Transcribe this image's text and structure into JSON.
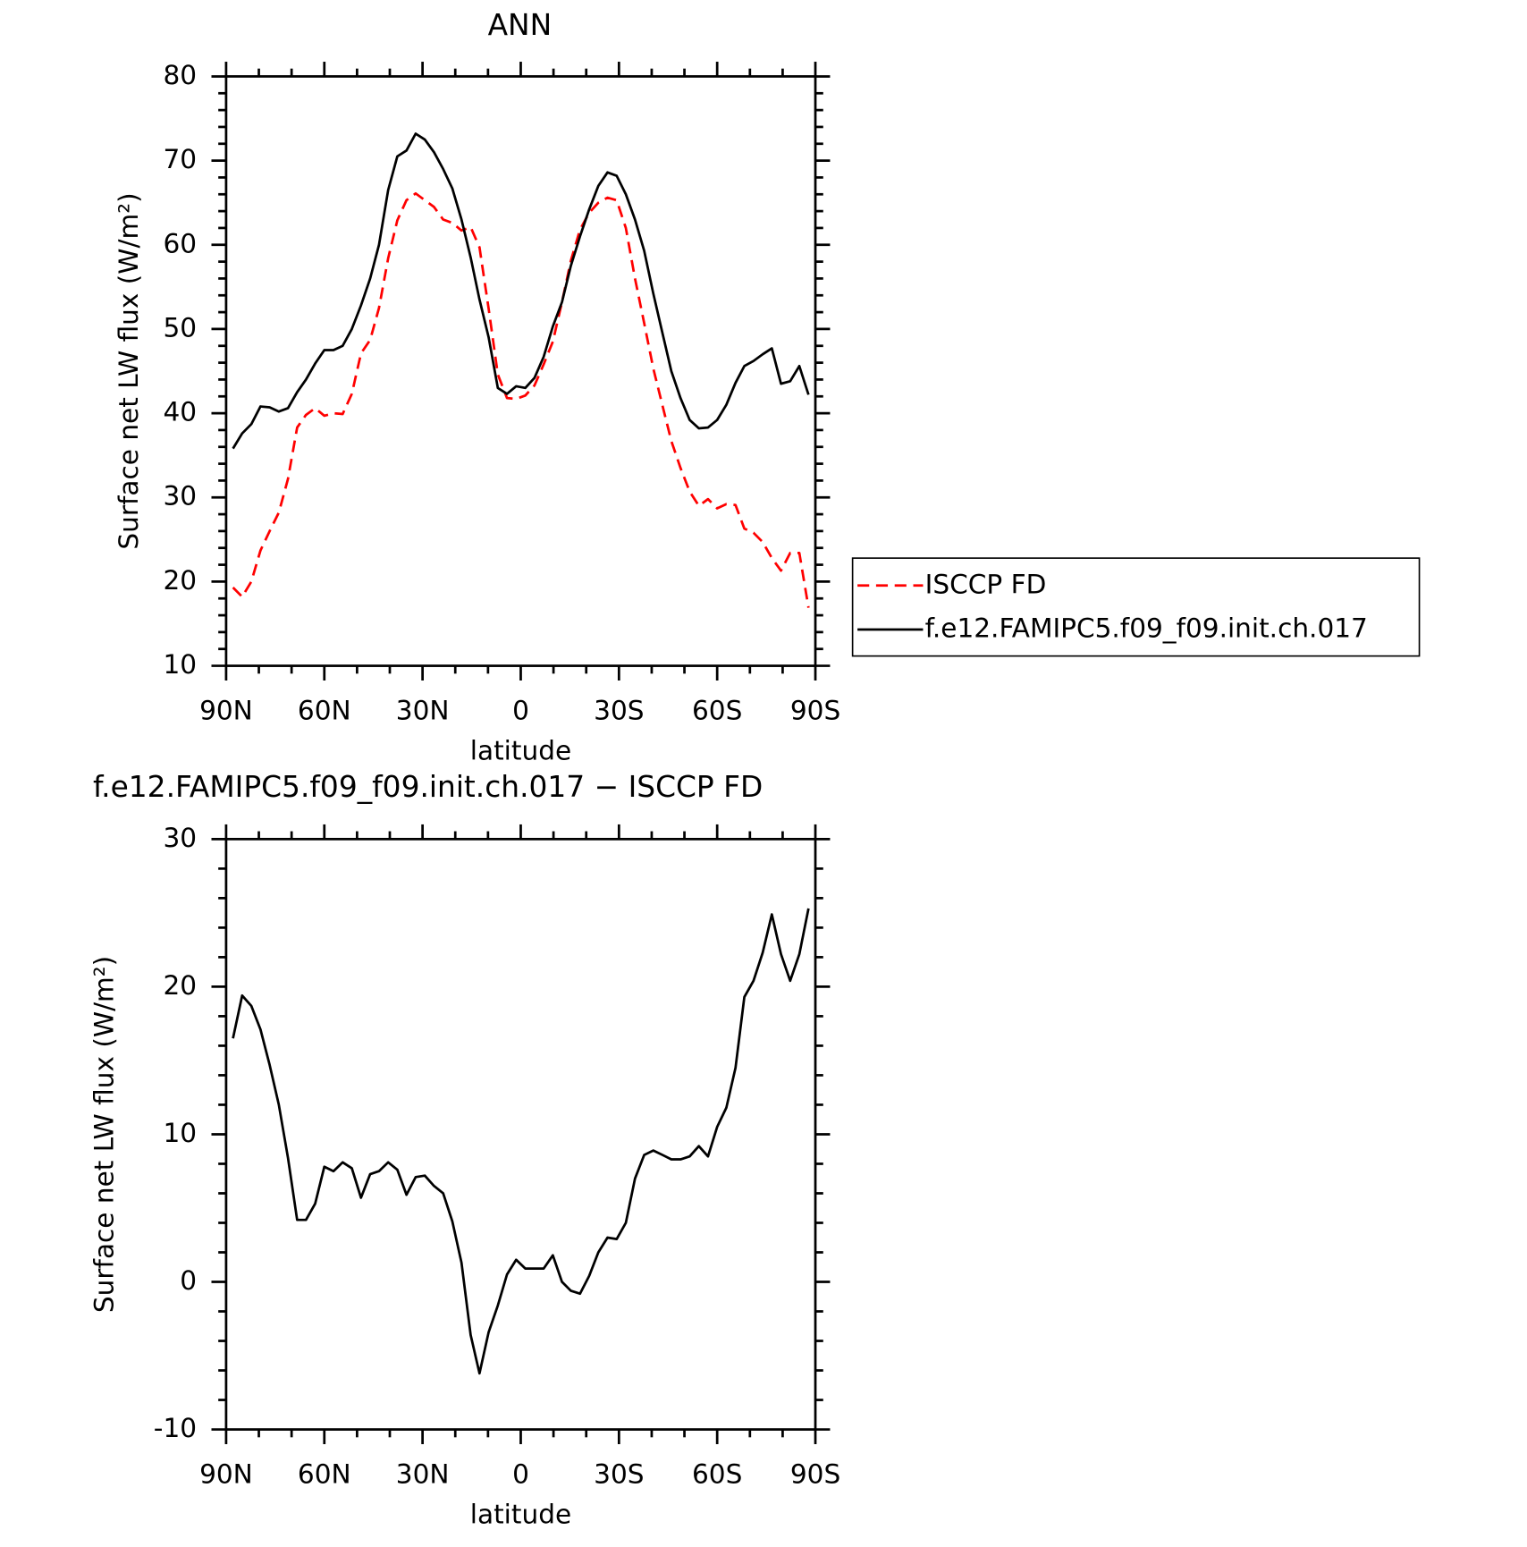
{
  "chart_data": [
    {
      "type": "line",
      "title": "ANN",
      "xlabel": "latitude",
      "ylabel": "Surface net LW flux (W/m²)",
      "x": [
        87.9,
        85.1,
        82.3,
        79.5,
        76.7,
        73.9,
        71.1,
        68.3,
        65.6,
        62.8,
        60.0,
        57.2,
        54.4,
        51.6,
        48.8,
        46.0,
        43.3,
        40.5,
        37.7,
        34.9,
        32.1,
        29.3,
        26.5,
        23.7,
        20.9,
        18.1,
        15.3,
        12.6,
        9.8,
        7.0,
        4.2,
        1.4,
        -1.4,
        -4.2,
        -7.0,
        -9.8,
        -12.6,
        -15.3,
        -18.1,
        -20.9,
        -23.7,
        -26.5,
        -29.3,
        -32.1,
        -34.9,
        -37.7,
        -40.5,
        -43.3,
        -46.0,
        -48.8,
        -51.6,
        -54.4,
        -57.2,
        -60.0,
        -62.8,
        -65.6,
        -68.3,
        -71.1,
        -73.9,
        -76.7,
        -79.5,
        -82.3,
        -85.1,
        -87.9
      ],
      "series": [
        {
          "name": "ISCCP FD",
          "color": "#ff0000",
          "linestyle": "dashed",
          "values": [
            19.3,
            18.2,
            20.0,
            23.7,
            26.0,
            28.2,
            32.2,
            38.3,
            39.8,
            40.6,
            39.7,
            40.0,
            39.9,
            42.3,
            47.1,
            48.7,
            52.5,
            58.4,
            62.9,
            65.3,
            66.1,
            65.3,
            64.5,
            63.0,
            62.6,
            61.7,
            62.1,
            59.7,
            52.4,
            44.6,
            41.8,
            41.7,
            42.1,
            43.3,
            45.8,
            48.5,
            53.2,
            58.1,
            61.8,
            63.8,
            65.0,
            65.6,
            65.3,
            62.0,
            56.0,
            50.7,
            45.3,
            40.9,
            36.7,
            33.5,
            30.7,
            29.0,
            29.8,
            28.7,
            29.2,
            29.1,
            26.3,
            25.8,
            24.7,
            22.8,
            21.3,
            23.4,
            23.4,
            16.9
          ]
        },
        {
          "name": "f.e12.FAMIPC5.f09_f09.init.ch.017",
          "color": "#000000",
          "linestyle": "solid",
          "values": [
            35.8,
            37.6,
            38.7,
            40.8,
            40.7,
            40.2,
            40.6,
            42.5,
            44.0,
            45.9,
            47.5,
            47.5,
            48.0,
            50.0,
            52.8,
            56.0,
            60.0,
            66.5,
            70.5,
            71.2,
            73.2,
            72.5,
            71.0,
            69.0,
            66.7,
            63.0,
            58.5,
            53.5,
            49.0,
            43.0,
            42.3,
            43.2,
            43.0,
            44.2,
            46.7,
            50.3,
            53.2,
            57.5,
            61.0,
            64.2,
            67.0,
            68.6,
            68.2,
            66.0,
            63.0,
            59.3,
            54.2,
            49.5,
            45.0,
            41.8,
            39.2,
            38.2,
            38.3,
            39.2,
            41.0,
            43.6,
            45.6,
            46.2,
            47.0,
            47.7,
            43.5,
            43.8,
            45.6,
            42.2
          ]
        }
      ],
      "xlim": [
        90,
        -90
      ],
      "xticks": [
        {
          "value": 90,
          "label": "90N"
        },
        {
          "value": 60,
          "label": "60N"
        },
        {
          "value": 30,
          "label": "30N"
        },
        0,
        {
          "value": -30,
          "label": "30S"
        },
        {
          "value": -60,
          "label": "60S"
        },
        {
          "value": -90,
          "label": "90S"
        }
      ],
      "ylim": [
        10,
        80
      ],
      "yticks": [
        10,
        20,
        30,
        40,
        50,
        60,
        70,
        80
      ],
      "legend": "right"
    },
    {
      "type": "line",
      "title": "f.e12.FAMIPC5.f09_f09.init.ch.017 − ISCCP FD",
      "xlabel": "latitude",
      "ylabel": "Surface net LW flux (W/m²)",
      "x": [
        87.9,
        85.1,
        82.3,
        79.5,
        76.7,
        73.9,
        71.1,
        68.3,
        65.6,
        62.8,
        60.0,
        57.2,
        54.4,
        51.6,
        48.8,
        46.0,
        43.3,
        40.5,
        37.7,
        34.9,
        32.1,
        29.3,
        26.5,
        23.7,
        20.9,
        18.1,
        15.3,
        12.6,
        9.8,
        7.0,
        4.2,
        1.4,
        -1.4,
        -4.2,
        -7.0,
        -9.8,
        -12.6,
        -15.3,
        -18.1,
        -20.9,
        -23.7,
        -26.5,
        -29.3,
        -32.1,
        -34.9,
        -37.7,
        -40.5,
        -43.3,
        -46.0,
        -48.8,
        -51.6,
        -54.4,
        -57.2,
        -60.0,
        -62.8,
        -65.6,
        -68.3,
        -71.1,
        -73.9,
        -76.7,
        -79.5,
        -82.3,
        -85.1,
        -87.9
      ],
      "color": "#000000",
      "values": [
        16.5,
        19.4,
        18.7,
        17.1,
        14.7,
        12.0,
        8.4,
        4.2,
        4.2,
        5.3,
        7.8,
        7.5,
        8.1,
        7.7,
        5.7,
        7.3,
        7.5,
        8.1,
        7.6,
        5.9,
        7.1,
        7.2,
        6.5,
        6.0,
        4.1,
        1.3,
        -3.6,
        -6.2,
        -3.4,
        -1.6,
        0.5,
        1.5,
        0.9,
        0.9,
        0.9,
        1.8,
        0.0,
        -0.6,
        -0.8,
        0.4,
        2.0,
        3.0,
        2.9,
        4.0,
        7.0,
        8.6,
        8.9,
        8.6,
        8.3,
        8.3,
        8.5,
        9.2,
        8.5,
        10.5,
        11.8,
        14.5,
        19.3,
        20.4,
        22.3,
        24.9,
        22.2,
        20.4,
        22.2,
        25.3
      ],
      "xlim": [
        90,
        -90
      ],
      "xticks": [
        {
          "value": 90,
          "label": "90N"
        },
        {
          "value": 60,
          "label": "60N"
        },
        {
          "value": 30,
          "label": "30N"
        },
        0,
        {
          "value": -30,
          "label": "30S"
        },
        {
          "value": -60,
          "label": "60S"
        },
        {
          "value": -90,
          "label": "90S"
        }
      ],
      "ylim": [
        -10,
        30
      ],
      "yticks": [
        -10,
        0,
        10,
        20,
        30
      ]
    }
  ]
}
